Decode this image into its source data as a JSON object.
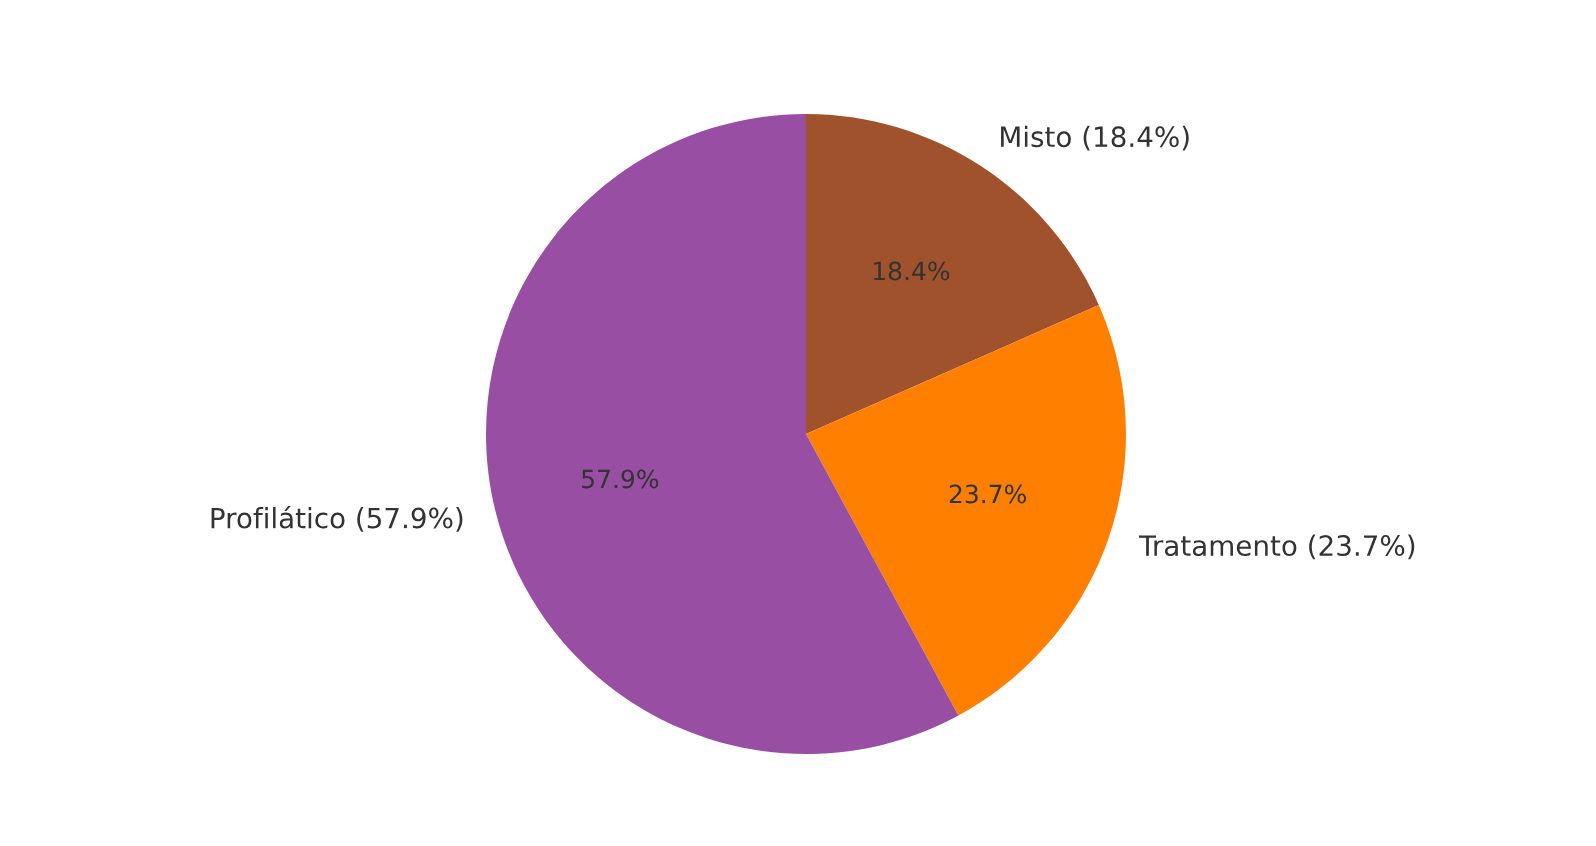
{
  "chart_data": {
    "type": "pie",
    "categories": [
      "Misto (18.4%)",
      "Tratamento (23.7%)",
      "Profilático (57.9%)"
    ],
    "values": [
      18.4,
      23.7,
      57.9
    ],
    "colors": [
      "#a0522d",
      "#ff7f00",
      "#984ea3"
    ],
    "value_labels": [
      "18.4%",
      "23.7%",
      "57.9%"
    ]
  }
}
